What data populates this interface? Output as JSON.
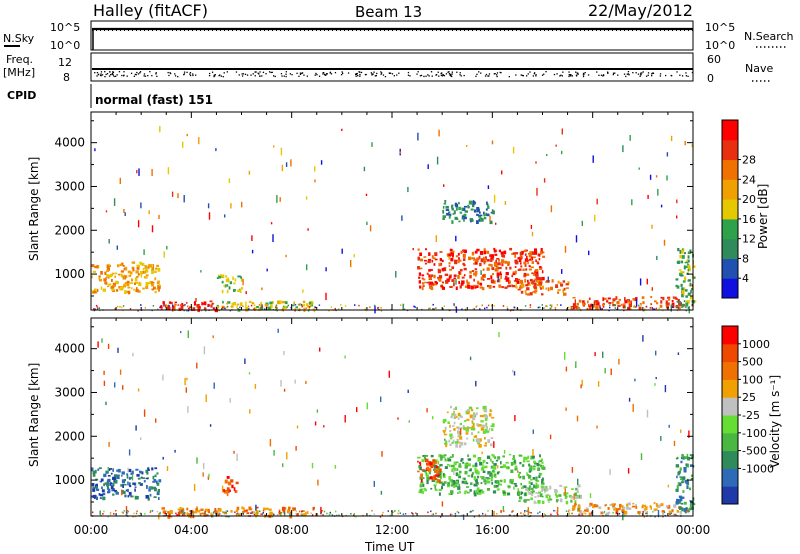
{
  "header": {
    "title": "Halley (fitACF)",
    "beam": "Beam 13",
    "date": "22/May/2012"
  },
  "top_panels": {
    "nsky_label": "N.Sky",
    "nsearch_label": "N.Search",
    "nsky_ticks": [
      "10^5",
      "10^0"
    ],
    "nsearch_ticks": [
      "10^5",
      "10^0"
    ],
    "freq_label_line1": "Freq.",
    "freq_label_line2": "[MHz]",
    "freq_ticks": [
      "12",
      "8"
    ],
    "nave_label": "Nave",
    "nave_ticks": [
      "60",
      "0"
    ],
    "cpid_label": "CPID",
    "mode_text": "normal (fast) 151"
  },
  "chart_data": [
    {
      "type": "heatmap",
      "name": "power",
      "ylabel": "Slant Range [km]",
      "ylim": [
        180,
        4700
      ],
      "yticks": [
        "1000",
        "2000",
        "3000",
        "4000"
      ],
      "xlim": [
        0,
        24
      ],
      "xticks": [
        "00:00",
        "04:00",
        "08:00",
        "12:00",
        "16:00",
        "20:00",
        "00:00"
      ],
      "colorbar_label": "Power [dB]",
      "colorbar_ticks": [
        "4",
        "8",
        "12",
        "16",
        "20",
        "24",
        "28"
      ],
      "colorbar_colors": [
        "#1010e0",
        "#2050b0",
        "#2f8c5a",
        "#2ea24a",
        "#e6c800",
        "#f0a000",
        "#f07000",
        "#e83010",
        "#ff0000"
      ],
      "features": [
        {
          "t": [
            0.0,
            2.7
          ],
          "r": [
            600,
            1300
          ],
          "level": 5
        },
        {
          "t": [
            2.7,
            5.0
          ],
          "r": [
            200,
            400
          ],
          "level": 8
        },
        {
          "t": [
            5.0,
            9.0
          ],
          "r": [
            200,
            400
          ],
          "level": 4
        },
        {
          "t": [
            5.0,
            6.0
          ],
          "r": [
            600,
            1000
          ],
          "level": 3
        },
        {
          "t": [
            13.0,
            18.0
          ],
          "r": [
            700,
            1600
          ],
          "level": 7
        },
        {
          "t": [
            17.0,
            19.0
          ],
          "r": [
            550,
            900
          ],
          "level": 6
        },
        {
          "t": [
            19.0,
            23.5
          ],
          "r": [
            250,
            500
          ],
          "level": 7
        },
        {
          "t": [
            23.3,
            24.0
          ],
          "r": [
            300,
            1600
          ],
          "level": 3
        },
        {
          "t": [
            14.0,
            16.0
          ],
          "r": [
            2200,
            2700
          ],
          "level": 2
        }
      ]
    },
    {
      "type": "heatmap",
      "name": "velocity",
      "ylabel": "Slant Range [km]",
      "ylim": [
        180,
        4700
      ],
      "yticks": [
        "1000",
        "2000",
        "3000",
        "4000"
      ],
      "xlim": [
        0,
        24
      ],
      "xticks": [
        "00:00",
        "04:00",
        "08:00",
        "12:00",
        "16:00",
        "20:00",
        "00:00"
      ],
      "xlabel": "Time UT",
      "colorbar_label": "Velocity [m s⁻¹]",
      "colorbar_ticks": [
        "1000",
        "500",
        "100",
        "25",
        "-25",
        "-100",
        "-500",
        "-1000"
      ],
      "colorbar_colors": [
        "#1f3aa8",
        "#2f6ab8",
        "#2f8c5a",
        "#4ab840",
        "#66dd33",
        "#c0c0c0",
        "#f0a000",
        "#f07000",
        "#f04800",
        "#ff0000"
      ],
      "features": [
        {
          "t": [
            0.0,
            2.7
          ],
          "r": [
            600,
            1300
          ],
          "level": 1
        },
        {
          "t": [
            2.7,
            9.0
          ],
          "r": [
            200,
            400
          ],
          "level": 7
        },
        {
          "t": [
            5.2,
            5.8
          ],
          "r": [
            700,
            1100
          ],
          "level": 8
        },
        {
          "t": [
            13.0,
            18.0
          ],
          "r": [
            700,
            1600
          ],
          "level": 3
        },
        {
          "t": [
            13.0,
            14.0
          ],
          "r": [
            1000,
            1500
          ],
          "level": 8
        },
        {
          "t": [
            17.0,
            19.5
          ],
          "r": [
            500,
            900
          ],
          "level": 4
        },
        {
          "t": [
            19.0,
            23.5
          ],
          "r": [
            250,
            500
          ],
          "level": 6
        },
        {
          "t": [
            23.3,
            24.0
          ],
          "r": [
            300,
            1600
          ],
          "level": 2
        },
        {
          "t": [
            14.0,
            16.0
          ],
          "r": [
            1800,
            2700
          ],
          "level": 5
        }
      ]
    }
  ]
}
